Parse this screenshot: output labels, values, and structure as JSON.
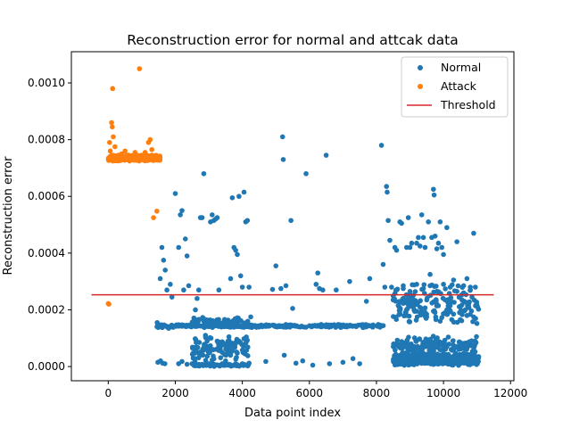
{
  "chart_data": {
    "type": "scatter",
    "title": "Reconstruction error for normal and attcak data",
    "xlabel": "Data point index",
    "ylabel": "Reconstruction error",
    "xlim": [
      -1100,
      12100
    ],
    "ylim": [
      -5e-05,
      0.00111
    ],
    "x_ticks": [
      0,
      2000,
      4000,
      6000,
      8000,
      10000,
      12000
    ],
    "x_tick_labels": [
      "0",
      "2000",
      "4000",
      "6000",
      "8000",
      "10000",
      "12000"
    ],
    "y_ticks": [
      0.0,
      0.0002,
      0.0004,
      0.0006,
      0.0008,
      0.001
    ],
    "y_tick_labels": [
      "0.0000",
      "0.0002",
      "0.0004",
      "0.0006",
      "0.0008",
      "0.0010"
    ],
    "grid": false,
    "legend_position": "top-right",
    "threshold": {
      "name": "Threshold",
      "value": 0.000253,
      "x_range": [
        -500,
        11500
      ],
      "color": "#d62728"
    },
    "series": [
      {
        "name": "Normal",
        "color": "#1f77b4",
        "points": [
          [
            1460,
            0.000155
          ],
          [
            1500,
            0.000148
          ],
          [
            1550,
            0.00031
          ],
          [
            1600,
            0.00042
          ],
          [
            1650,
            0.000375
          ],
          [
            1700,
            0.00034
          ],
          [
            1750,
            0.00027
          ],
          [
            1480,
            1.5e-05
          ],
          [
            1560,
            2e-05
          ],
          [
            1620,
            1.2e-05
          ],
          [
            1690,
            1e-05
          ],
          [
            1750,
            0.00014
          ],
          [
            1800,
            0.000135
          ],
          [
            1850,
            0.00029
          ],
          [
            1900,
            0.000245
          ],
          [
            2000,
            0.00061
          ],
          [
            2100,
            0.00042
          ],
          [
            2150,
            0.000535
          ],
          [
            2200,
            0.00055
          ],
          [
            2250,
            0.00027
          ],
          [
            2300,
            0.00045
          ],
          [
            2350,
            0.00039
          ],
          [
            2400,
            0.000285
          ],
          [
            2100,
            1e-05
          ],
          [
            2200,
            1.8e-05
          ],
          [
            2350,
            8e-06
          ],
          [
            2500,
            1e-05
          ],
          [
            2600,
            0.0002
          ],
          [
            2650,
            0.00024
          ],
          [
            2700,
            0.00027
          ],
          [
            2750,
            0.000525
          ],
          [
            2800,
            0.000525
          ],
          [
            2850,
            0.00068
          ],
          [
            2900,
            0.00011
          ],
          [
            2950,
            9e-05
          ],
          [
            3000,
            7e-05
          ],
          [
            3050,
            0.00051
          ],
          [
            3100,
            0.000535
          ],
          [
            3150,
            0.000515
          ],
          [
            3200,
            0.00052
          ],
          [
            3250,
            0.000525
          ],
          [
            3300,
            0.00027
          ],
          [
            3350,
            7e-05
          ],
          [
            3400,
            5e-05
          ],
          [
            3500,
            2e-05
          ],
          [
            3600,
            0.000105
          ],
          [
            3650,
            0.00031
          ],
          [
            3700,
            0.000595
          ],
          [
            3750,
            0.00042
          ],
          [
            3800,
            0.00041
          ],
          [
            3850,
            0.000395
          ],
          [
            3900,
            0.0006
          ],
          [
            3950,
            0.00032
          ],
          [
            4000,
            0.00028
          ],
          [
            4050,
            0.000615
          ],
          [
            4100,
            0.00051
          ],
          [
            4150,
            0.000515
          ],
          [
            4200,
            0.00028
          ],
          [
            4250,
            0.000175
          ],
          [
            2800,
            8e-06
          ],
          [
            3000,
            1e-05
          ],
          [
            3200,
            5e-06
          ],
          [
            3400,
            1e-05
          ],
          [
            3600,
            8e-06
          ],
          [
            3800,
            1e-05
          ],
          [
            4000,
            1e-05
          ],
          [
            4200,
            1.2e-05
          ],
          [
            4700,
            1.8e-05
          ],
          [
            4900,
            0.000272
          ],
          [
            5000,
            0.000355
          ],
          [
            5150,
            0.000275
          ],
          [
            5200,
            0.00081
          ],
          [
            5220,
            0.00073
          ],
          [
            5250,
            4e-05
          ],
          [
            5300,
            0.000285
          ],
          [
            5450,
            0.000515
          ],
          [
            5500,
            0.000205
          ],
          [
            5600,
            1.2e-05
          ],
          [
            5800,
            2e-05
          ],
          [
            5900,
            0.00068
          ],
          [
            6100,
            5e-06
          ],
          [
            6200,
            0.00029
          ],
          [
            6250,
            0.00033
          ],
          [
            6300,
            0.000275
          ],
          [
            6400,
            0.00027
          ],
          [
            6500,
            0.000745
          ],
          [
            6600,
            1e-05
          ],
          [
            6800,
            0.00027
          ],
          [
            7000,
            1.5e-05
          ],
          [
            7200,
            0.0003
          ],
          [
            7300,
            2.8e-05
          ],
          [
            7500,
            1e-05
          ],
          [
            7700,
            0.00023
          ],
          [
            7800,
            0.00031
          ],
          [
            8150,
            0.00078
          ],
          [
            8200,
            0.00036
          ],
          [
            8250,
            0.00028
          ],
          [
            8300,
            0.000635
          ],
          [
            8320,
            0.000615
          ],
          [
            8350,
            0.000515
          ],
          [
            8400,
            0.000445
          ],
          [
            8450,
            0.00028
          ],
          [
            8500,
            0.000235
          ],
          [
            8550,
            0.00042
          ],
          [
            8600,
            0.00041
          ],
          [
            8650,
            0.000215
          ],
          [
            8700,
            0.00051
          ],
          [
            8750,
            0.000505
          ],
          [
            8800,
            0.000275
          ],
          [
            8850,
            0.000235
          ],
          [
            8900,
            0.00042
          ],
          [
            8950,
            0.000525
          ],
          [
            9000,
            0.00042
          ],
          [
            9050,
            0.000435
          ],
          [
            9100,
            0.000215
          ],
          [
            9200,
            0.000435
          ],
          [
            9250,
            0.000455
          ],
          [
            9300,
            0.000425
          ],
          [
            9350,
            0.000535
          ],
          [
            9400,
            0.000455
          ],
          [
            9450,
            0.00042
          ],
          [
            9500,
            0.000235
          ],
          [
            9550,
            0.00051
          ],
          [
            9600,
            0.000325
          ],
          [
            9650,
            0.000455
          ],
          [
            9700,
            0.000625
          ],
          [
            9720,
            0.000605
          ],
          [
            9750,
            0.00046
          ],
          [
            9800,
            0.000415
          ],
          [
            9850,
            0.000435
          ],
          [
            9900,
            0.00051
          ],
          [
            9950,
            0.00042
          ],
          [
            10000,
            0.000395
          ],
          [
            10050,
            0.000235
          ],
          [
            10100,
            0.00049
          ],
          [
            10200,
            0.000215
          ],
          [
            10300,
            0.000305
          ],
          [
            10400,
            0.00044
          ],
          [
            10500,
            0.00021
          ],
          [
            10550,
            0.000235
          ],
          [
            10600,
            0.00026
          ],
          [
            10650,
            0.0002
          ],
          [
            10700,
            0.00031
          ],
          [
            10750,
            0.00022
          ],
          [
            10800,
            0.00028
          ],
          [
            10850,
            0.000245
          ],
          [
            10900,
            0.00047
          ],
          [
            10950,
            0.00028
          ],
          [
            11000,
            0.000215
          ],
          [
            8700,
            0.000185
          ],
          [
            8900,
            0.00018
          ],
          [
            9100,
            0.00021
          ],
          [
            9300,
            0.00019
          ],
          [
            9500,
            0.000175
          ],
          [
            9700,
            0.000195
          ],
          [
            9900,
            0.00016
          ],
          [
            10100,
            0.0002
          ],
          [
            10300,
            0.000185
          ],
          [
            10500,
            0.000165
          ],
          [
            10700,
            0.00018
          ],
          [
            10900,
            0.000175
          ],
          [
            8600,
            0.00027
          ],
          [
            8800,
            0.000285
          ],
          [
            9000,
            0.000265
          ],
          [
            9200,
            0.00029
          ],
          [
            9400,
            0.000275
          ],
          [
            9600,
            0.000285
          ],
          [
            9800,
            0.000265
          ],
          [
            10000,
            0.00029
          ],
          [
            10200,
            0.00028
          ],
          [
            10400,
            0.000265
          ],
          [
            10600,
            0.000285
          ],
          [
            10800,
            0.00027
          ],
          [
            8700,
            7.5e-05
          ],
          [
            8900,
            5e-05
          ],
          [
            9100,
            7e-05
          ],
          [
            9300,
            6e-05
          ],
          [
            9500,
            7.5e-05
          ],
          [
            9700,
            5.5e-05
          ],
          [
            9900,
            8e-05
          ],
          [
            10100,
            7e-05
          ],
          [
            10300,
            6e-05
          ],
          [
            10500,
            8.5e-05
          ],
          [
            10700,
            6.5e-05
          ],
          [
            10900,
            7.5e-05
          ],
          [
            8650,
            1.5e-05
          ],
          [
            8850,
            2e-05
          ],
          [
            9050,
            1e-05
          ],
          [
            9250,
            2.5e-05
          ],
          [
            9450,
            1.2e-05
          ],
          [
            9650,
            1.8e-05
          ],
          [
            9850,
            1e-05
          ],
          [
            10050,
            2.2e-05
          ],
          [
            10250,
            1.5e-05
          ],
          [
            10450,
            1e-05
          ],
          [
            10650,
            2e-05
          ],
          [
            10850,
            1.5e-05
          ],
          [
            11000,
            1e-05
          ],
          [
            11050,
            3.5e-05
          ]
        ],
        "bands": [
          {
            "x_range": [
              1450,
              8250
            ],
            "y_center": 0.000143,
            "y_spread": 6e-06,
            "count": 320
          },
          {
            "x_range": [
              2500,
              4200
            ],
            "y_center": 0.00016,
            "y_spread": 1.5e-05,
            "count": 60
          },
          {
            "x_range": [
              2500,
              4200
            ],
            "y_center": 6e-05,
            "y_spread": 5e-05,
            "count": 110
          },
          {
            "x_range": [
              2500,
              4200
            ],
            "y_center": 5e-06,
            "y_spread": 5e-06,
            "count": 60
          },
          {
            "x_range": [
              8500,
              11050
            ],
            "y_center": 2.5e-05,
            "y_spread": 2.2e-05,
            "count": 650
          },
          {
            "x_range": [
              8500,
              11050
            ],
            "y_center": 7.5e-05,
            "y_spread": 3.5e-05,
            "count": 140
          },
          {
            "x_range": [
              8500,
              11050
            ],
            "y_center": 0.00022,
            "y_spread": 9e-05,
            "count": 150
          }
        ]
      },
      {
        "name": "Attack",
        "color": "#ff7f0e",
        "points": [
          [
            0,
            0.000222
          ],
          [
            20,
            0.00022
          ],
          [
            40,
            0.00079
          ],
          [
            60,
            0.00076
          ],
          [
            100,
            0.00086
          ],
          [
            120,
            0.000845
          ],
          [
            130,
            0.00098
          ],
          [
            150,
            0.00081
          ],
          [
            200,
            0.000775
          ],
          [
            300,
            0.000745
          ],
          [
            400,
            0.00075
          ],
          [
            500,
            0.00076
          ],
          [
            600,
            0.000745
          ],
          [
            700,
            0.00074
          ],
          [
            800,
            0.000755
          ],
          [
            930,
            0.00105
          ],
          [
            1000,
            0.000745
          ],
          [
            1100,
            0.000755
          ],
          [
            1200,
            0.00079
          ],
          [
            1250,
            0.0008
          ],
          [
            1300,
            0.000765
          ],
          [
            1350,
            0.000525
          ],
          [
            1400,
            0.00074
          ],
          [
            1450,
            0.000548
          ],
          [
            1500,
            0.000735
          ]
        ],
        "bands": [
          {
            "x_range": [
              0,
              1550
            ],
            "y_center": 0.000735,
            "y_spread": 1.2e-05,
            "count": 380
          }
        ]
      }
    ]
  }
}
